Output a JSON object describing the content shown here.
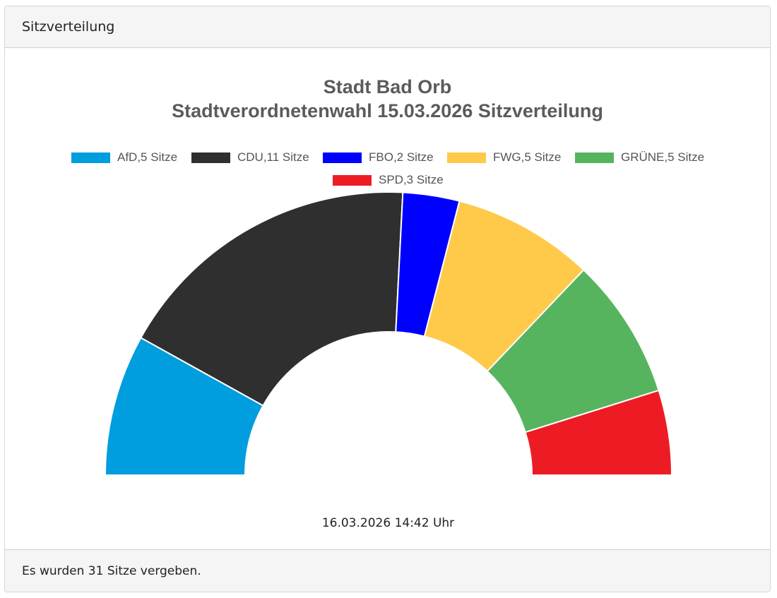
{
  "panel": {
    "header": "Sitzverteilung",
    "footer": "Es wurden 31 Sitze vergeben."
  },
  "chart": {
    "title_line1": "Stadt Bad Orb",
    "title_line2": "Stadtverordnetenwahl 15.03.2026 Sitzverteilung",
    "timestamp": "16.03.2026 14:42 Uhr",
    "legend": [
      {
        "label": "AfD,5 Sitze",
        "color": "#009ddf"
      },
      {
        "label": "CDU,11 Sitze",
        "color": "#302f30"
      },
      {
        "label": "FBO,2 Sitze",
        "color": "#0000ff"
      },
      {
        "label": "FWG,5 Sitze",
        "color": "#ffc94a"
      },
      {
        "label": "GRÜNE,5 Sitze",
        "color": "#57b45e"
      },
      {
        "label": "SPD,3 Sitze",
        "color": "#ed1c24"
      }
    ]
  },
  "chart_data": {
    "type": "pie",
    "subtype": "half-donut (parliament seats)",
    "title": "Stadt Bad Orb — Stadtverordnetenwahl 15.03.2026 Sitzverteilung",
    "categories": [
      "AfD",
      "CDU",
      "FBO",
      "FWG",
      "GRÜNE",
      "SPD"
    ],
    "values": [
      5,
      11,
      2,
      5,
      5,
      3
    ],
    "colors": [
      "#009ddf",
      "#302f30",
      "#0000ff",
      "#ffc94a",
      "#57b45e",
      "#ed1c24"
    ],
    "total": 31,
    "legend_position": "top",
    "annotation": "16.03.2026 14:42 Uhr"
  }
}
